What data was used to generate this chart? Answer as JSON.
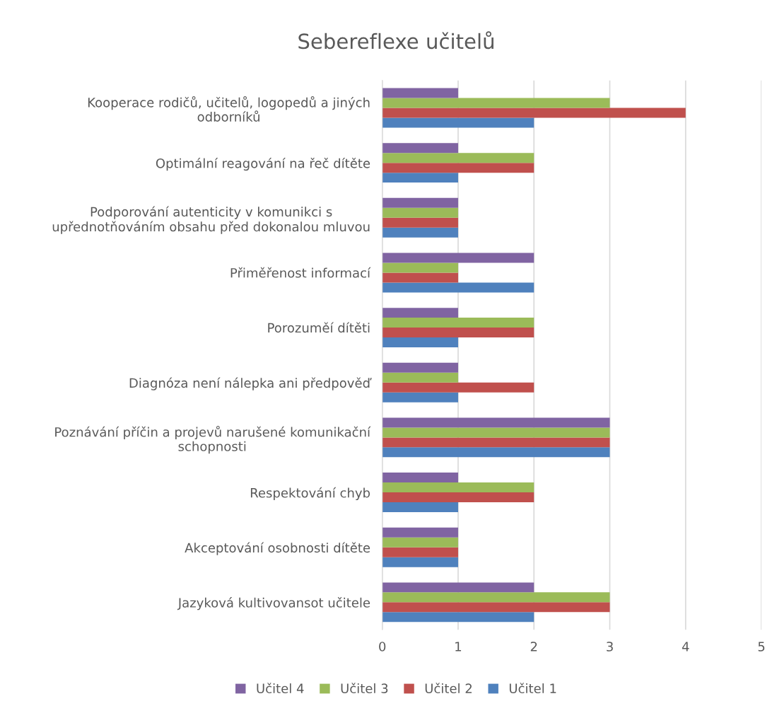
{
  "chart_data": {
    "type": "bar",
    "orientation": "horizontal",
    "title": "Sebereflexe učitelů",
    "categories": [
      "Kooperace rodičů, učitelů, logopedů a jiných\nodborníků",
      "Optimální reagování na řeč dítěte",
      "Podporování autenticity v komunikci s\nupřednotňováním obsahu před dokonalou mluvou",
      "Přiměřenost informací",
      "Porozuměí dítěti",
      "Diagnóza není nálepka ani předpověď",
      "Poznávání příčin a projevů narušené komunikační\nschopnosti",
      "Respektování chyb",
      "Akceptování osobnosti dítěte",
      "Jazyková kultivovansot učitele"
    ],
    "series": [
      {
        "name": "Učitel 1",
        "color": "#4f81bd",
        "values": [
          2,
          1,
          1,
          2,
          1,
          1,
          3,
          1,
          1,
          2
        ]
      },
      {
        "name": "Učitel 2",
        "color": "#c0504d",
        "values": [
          4,
          2,
          1,
          1,
          2,
          2,
          3,
          2,
          1,
          3
        ]
      },
      {
        "name": "Učitel 3",
        "color": "#9bbb59",
        "values": [
          3,
          2,
          1,
          1,
          2,
          1,
          3,
          2,
          1,
          3
        ]
      },
      {
        "name": "Učitel 4",
        "color": "#8064a2",
        "values": [
          1,
          1,
          1,
          2,
          1,
          1,
          3,
          1,
          1,
          2
        ]
      }
    ],
    "xlim": [
      0,
      5
    ],
    "xticks": [
      0,
      1,
      2,
      3,
      4,
      5
    ],
    "grid": "x",
    "legend": "bottom"
  }
}
